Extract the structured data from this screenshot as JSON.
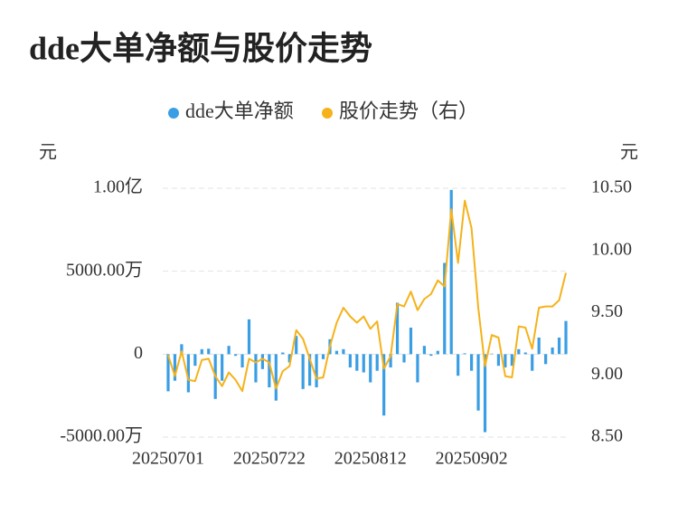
{
  "chart_data": {
    "type": "bar",
    "title": "dde大单净额与股价走势",
    "y_label": "元",
    "y2_label": "元",
    "legend": "top",
    "grid": true,
    "categories": [
      "20250701",
      null,
      null,
      null,
      null,
      null,
      null,
      null,
      null,
      null,
      null,
      null,
      null,
      null,
      null,
      "20250722",
      null,
      null,
      null,
      null,
      null,
      null,
      null,
      null,
      null,
      null,
      null,
      null,
      null,
      null,
      "20250812",
      null,
      null,
      null,
      null,
      null,
      null,
      null,
      null,
      null,
      null,
      null,
      null,
      null,
      null,
      "20250902",
      null,
      null,
      null,
      null,
      null,
      null,
      null,
      null,
      null,
      null,
      null,
      null,
      null,
      null
    ],
    "series": [
      {
        "name": "dde大单净额",
        "type": "bar",
        "color": "#3a9ee4",
        "values": [
          -22400000,
          -16000000,
          6000000,
          -23000000,
          -7000000,
          3000000,
          3300000,
          -27000000,
          -16000000,
          5000000,
          -1000000,
          -8000000,
          21000000,
          -17000000,
          -9000000,
          -20000000,
          -28000000,
          1000000,
          -5000000,
          11000000,
          -21000000,
          -19000000,
          -20000000,
          -3000000,
          9000000,
          2000000,
          3000000,
          -8000000,
          -10000000,
          -11000000,
          -17000000,
          -10000000,
          -37000000,
          -8000000,
          31000000,
          -5000000,
          16000000,
          -17000000,
          5000000,
          -1000000,
          2000000,
          55000000,
          99000000,
          -13000000,
          500000,
          -10000000,
          -34000000,
          -47000000,
          300000,
          -7000000,
          -8000000,
          -7000000,
          3000000,
          1000000,
          -10000000,
          10000000,
          -6000000,
          4000000,
          10000000,
          20000000
        ]
      },
      {
        "name": "股价走势（右）",
        "type": "line",
        "axis": "y2",
        "color": "#f5b21a",
        "values": [
          9.16,
          8.99,
          9.19,
          8.96,
          8.95,
          9.12,
          9.13,
          8.99,
          8.91,
          9.02,
          8.96,
          8.87,
          9.13,
          9.1,
          9.13,
          9.1,
          8.89,
          9.03,
          9.07,
          9.36,
          9.29,
          9.13,
          8.97,
          8.98,
          9.23,
          9.42,
          9.54,
          9.47,
          9.42,
          9.47,
          9.37,
          9.43,
          9.05,
          9.15,
          9.57,
          9.55,
          9.67,
          9.52,
          9.61,
          9.65,
          9.76,
          9.71,
          10.33,
          9.9,
          10.4,
          10.18,
          9.54,
          9.07,
          9.32,
          9.3,
          8.99,
          8.98,
          9.39,
          9.38,
          9.21,
          9.54,
          9.55,
          9.55,
          9.6,
          9.82
        ]
      }
    ],
    "ylim": [
      -50000000,
      100000000
    ],
    "yticks": [
      {
        "value": 100000000,
        "label": "1.00亿"
      },
      {
        "value": 50000000,
        "label": "5000.00万"
      },
      0,
      {
        "value": -50000000,
        "label": "-5000.00万"
      }
    ],
    "y2lim": [
      8.5,
      10.5
    ],
    "y2ticks": [
      {
        "value": 10.5,
        "label": "10.50"
      },
      {
        "value": 10,
        "label": "10.00"
      },
      {
        "value": 9.5,
        "label": "9.50"
      },
      {
        "value": 9,
        "label": "9.00"
      },
      {
        "value": 8.5,
        "label": "8.50"
      }
    ]
  }
}
